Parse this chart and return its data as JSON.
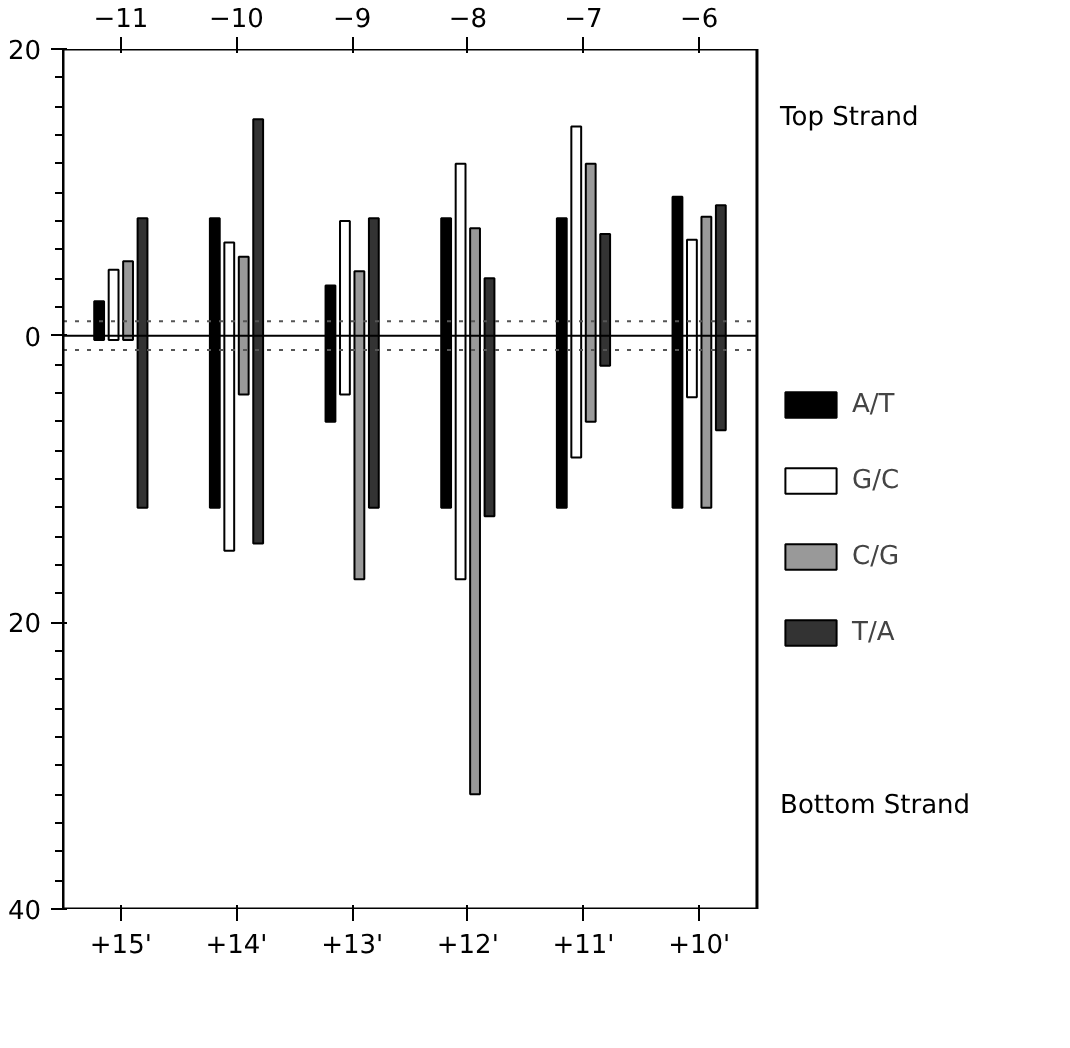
{
  "chart_data": {
    "type": "bar",
    "categories": [
      "+15'",
      "+14'",
      "+13'",
      "+12'",
      "+11'",
      "+10'"
    ],
    "x2lim": [
      -11.5,
      -5.5
    ],
    "x2ticks": [
      -11,
      -10,
      -9,
      -8,
      -7,
      -6
    ],
    "ylim": [
      -40,
      20
    ],
    "yticks": [
      {
        "value": 20,
        "label": "20"
      },
      {
        "value": 18,
        "label": null
      },
      {
        "value": 16,
        "label": null
      },
      {
        "value": 14,
        "label": null
      },
      {
        "value": 12,
        "label": null
      },
      {
        "value": 10,
        "label": null
      },
      {
        "value": 8,
        "label": null
      },
      {
        "value": 6,
        "label": null
      },
      {
        "value": 4,
        "label": null
      },
      {
        "value": 2,
        "label": null
      },
      {
        "value": 0,
        "label": "0"
      },
      {
        "value": -2,
        "label": null
      },
      {
        "value": -4,
        "label": null
      },
      {
        "value": -6,
        "label": null
      },
      {
        "value": -8,
        "label": null
      },
      {
        "value": -10,
        "label": null
      },
      {
        "value": -12,
        "label": null
      },
      {
        "value": -14,
        "label": null
      },
      {
        "value": -16,
        "label": null
      },
      {
        "value": -18,
        "label": null
      },
      {
        "value": -20,
        "label": "20"
      },
      {
        "value": -22,
        "label": null
      },
      {
        "value": -24,
        "label": null
      },
      {
        "value": -26,
        "label": null
      },
      {
        "value": -28,
        "label": null
      },
      {
        "value": -30,
        "label": null
      },
      {
        "value": -32,
        "label": null
      },
      {
        "value": -34,
        "label": null
      },
      {
        "value": -36,
        "label": null
      },
      {
        "value": -38,
        "label": null
      },
      {
        "value": -40,
        "label": "40"
      }
    ],
    "series": [
      {
        "name": "A/T",
        "color": "#000000",
        "base": [
          -0.3,
          -12,
          -6,
          -12,
          -12,
          -12
        ],
        "values": [
          2.7,
          20.2,
          9.5,
          20.2,
          20.2,
          21.7
        ]
      },
      {
        "name": "G/C",
        "color": "#ffffff",
        "base": [
          -0.3,
          -15,
          -4.1,
          -17,
          -8.5,
          -4.3
        ],
        "values": [
          4.9,
          21.5,
          12.1,
          29,
          23.1,
          11
        ]
      },
      {
        "name": "C/G",
        "color": "#999999",
        "base": [
          -0.3,
          -4.1,
          -17,
          -32,
          -6,
          -12
        ],
        "values": [
          5.5,
          9.6,
          21.5,
          39.5,
          18,
          20.3
        ]
      },
      {
        "name": "T/A",
        "color": "#333333",
        "base": [
          -12,
          -14.5,
          -12,
          -12.6,
          -2.1,
          -6.6
        ],
        "values": [
          20.2,
          29.6,
          20.2,
          16.6,
          9.2,
          15.7
        ]
      }
    ],
    "ref_lines": [
      {
        "axis": "y",
        "value": 0,
        "line_style": "solid",
        "color": "#000000"
      },
      {
        "axis": "y",
        "value": 1,
        "line_style": "dotted",
        "color": "#555555"
      },
      {
        "axis": "y",
        "value": -1,
        "line_style": "dotted",
        "color": "#555555"
      }
    ],
    "annotations": [
      "Top Strand",
      "Bottom Strand"
    ],
    "legend": "right",
    "grid": false
  }
}
